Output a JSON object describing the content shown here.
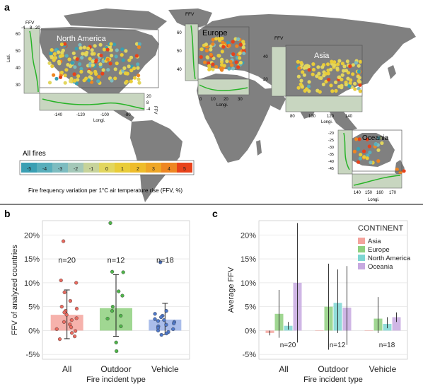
{
  "panels": {
    "a": "a",
    "b": "b",
    "c": "c"
  },
  "map": {
    "regions": [
      "North America",
      "Europe",
      "Asia",
      "Oceania"
    ],
    "legend_title": "All fires",
    "colorbar_caption": "Fire frequency variation per 1°C air temperature rise (FFV, %)",
    "colorbar_ticks": [
      "-5",
      "-4",
      "-3",
      "-2",
      "-1",
      "0",
      "1",
      "2",
      "3",
      "4",
      "5"
    ],
    "colorbar_colors": [
      "#3a9fb3",
      "#58aebb",
      "#7dbcc0",
      "#a4c8b8",
      "#c7d39a",
      "#e2d65e",
      "#e9cc39",
      "#eebc2a",
      "#eea626",
      "#ee8622",
      "#e8421a"
    ],
    "inset_axis_ffv": "FFV",
    "inset_axis_lat": "Lati.",
    "inset_axis_lon": "Longi.",
    "na_lat_ticks": [
      "60",
      "50",
      "40",
      "30"
    ],
    "na_ffv_ticks": [
      "-4",
      "8",
      "20"
    ],
    "na_lon_ticks": [
      "-140",
      "-120",
      "-100",
      "-80"
    ],
    "na_ffv_right_ticks": [
      "20",
      "8",
      "-4"
    ],
    "eu_lat_ticks": [
      "60",
      "50",
      "40"
    ],
    "eu_lon_ticks": [
      "0",
      "10",
      "20",
      "30"
    ],
    "asia_lon_ticks": [
      "80",
      "100",
      "120",
      "140"
    ],
    "asia_lat_ticks": [
      "40",
      "20"
    ],
    "oc_lat_ticks": [
      "-20",
      "-25",
      "-30",
      "-35",
      "-40",
      "-45"
    ],
    "oc_lon_ticks": [
      "140",
      "150",
      "160",
      "170"
    ]
  },
  "chart_data": [
    {
      "type": "bar",
      "ylabel": "FFV of analyzed countries",
      "xlabel": "Fire incident type",
      "categories": [
        "All",
        "Outdoor",
        "Vehicle"
      ],
      "values": [
        3.3,
        4.7,
        2.3
      ],
      "error": [
        [
          -1.7,
          8.5
        ],
        [
          -1.2,
          11.7
        ],
        [
          -0.8,
          5.7
        ]
      ],
      "counts": [
        "n=20",
        "n=12",
        "n=18"
      ],
      "colors": [
        "#f4a49d",
        "#8fd07f",
        "#9bb2e6"
      ],
      "ylim": [
        -6,
        23
      ],
      "yticks": [
        -5,
        0,
        5,
        10,
        15,
        20
      ],
      "ytick_labels": [
        "-5%",
        "0%",
        "5%",
        "10%",
        "15%",
        "20%"
      ],
      "points": [
        [
          18.7,
          10.5,
          10.0,
          8.0,
          6.2,
          5.0,
          4.6,
          4.1,
          3.8,
          3.3,
          2.6,
          2.2,
          1.8,
          1.3,
          0.7,
          0.3,
          -0.1,
          -0.5,
          -1.2,
          -1.8
        ],
        [
          22.5,
          12.3,
          12.2,
          8.2,
          7.3,
          5.0,
          4.1,
          3.1,
          2.5,
          0.9,
          -2.5,
          -4.3
        ],
        [
          14.3,
          4.1,
          3.5,
          3.1,
          2.8,
          2.4,
          2.2,
          2.0,
          1.8,
          1.5,
          1.2,
          0.9,
          0.6,
          0.3,
          0.0,
          -0.3,
          -0.6,
          -0.9
        ]
      ]
    },
    {
      "type": "bar",
      "ylabel": "Average FFV",
      "xlabel": "Fire incident type",
      "categories": [
        "All",
        "Outdoor",
        "Vehicle"
      ],
      "legend_title": "CONTINENT",
      "legend_position": "top-right",
      "series": [
        {
          "name": "Asia",
          "color": "#f4a49d",
          "values": [
            -0.5,
            0.0,
            0.0
          ],
          "error": [
            [
              -1.0,
              0.0
            ],
            [
              0.0,
              0.0
            ],
            [
              0.0,
              0.0
            ]
          ]
        },
        {
          "name": "Europe",
          "color": "#8fd07f",
          "values": [
            3.5,
            5.0,
            2.5
          ],
          "error": [
            [
              -1.5,
              8.5
            ],
            [
              -4.0,
              14.0
            ],
            [
              -0.5,
              7.0
            ]
          ]
        },
        {
          "name": "North America",
          "color": "#7ed6d2",
          "values": [
            1.0,
            5.8,
            1.4
          ],
          "error": [
            [
              0.2,
              1.8
            ],
            [
              -0.5,
              12.8
            ],
            [
              0.5,
              2.8
            ]
          ]
        },
        {
          "name": "Oceania",
          "color": "#c7a9e0",
          "values": [
            10.0,
            4.8,
            2.8
          ],
          "error": [
            [
              -2.5,
              22.5
            ],
            [
              -3.0,
              13.5
            ],
            [
              1.8,
              3.8
            ]
          ]
        }
      ],
      "counts": [
        "n=20",
        "n=12",
        "n=18"
      ],
      "ylim": [
        -6,
        23
      ],
      "yticks": [
        -5,
        0,
        5,
        10,
        15,
        20
      ],
      "ytick_labels": [
        "-5%",
        "0%",
        "5%",
        "10%",
        "15%",
        "20%"
      ]
    }
  ]
}
